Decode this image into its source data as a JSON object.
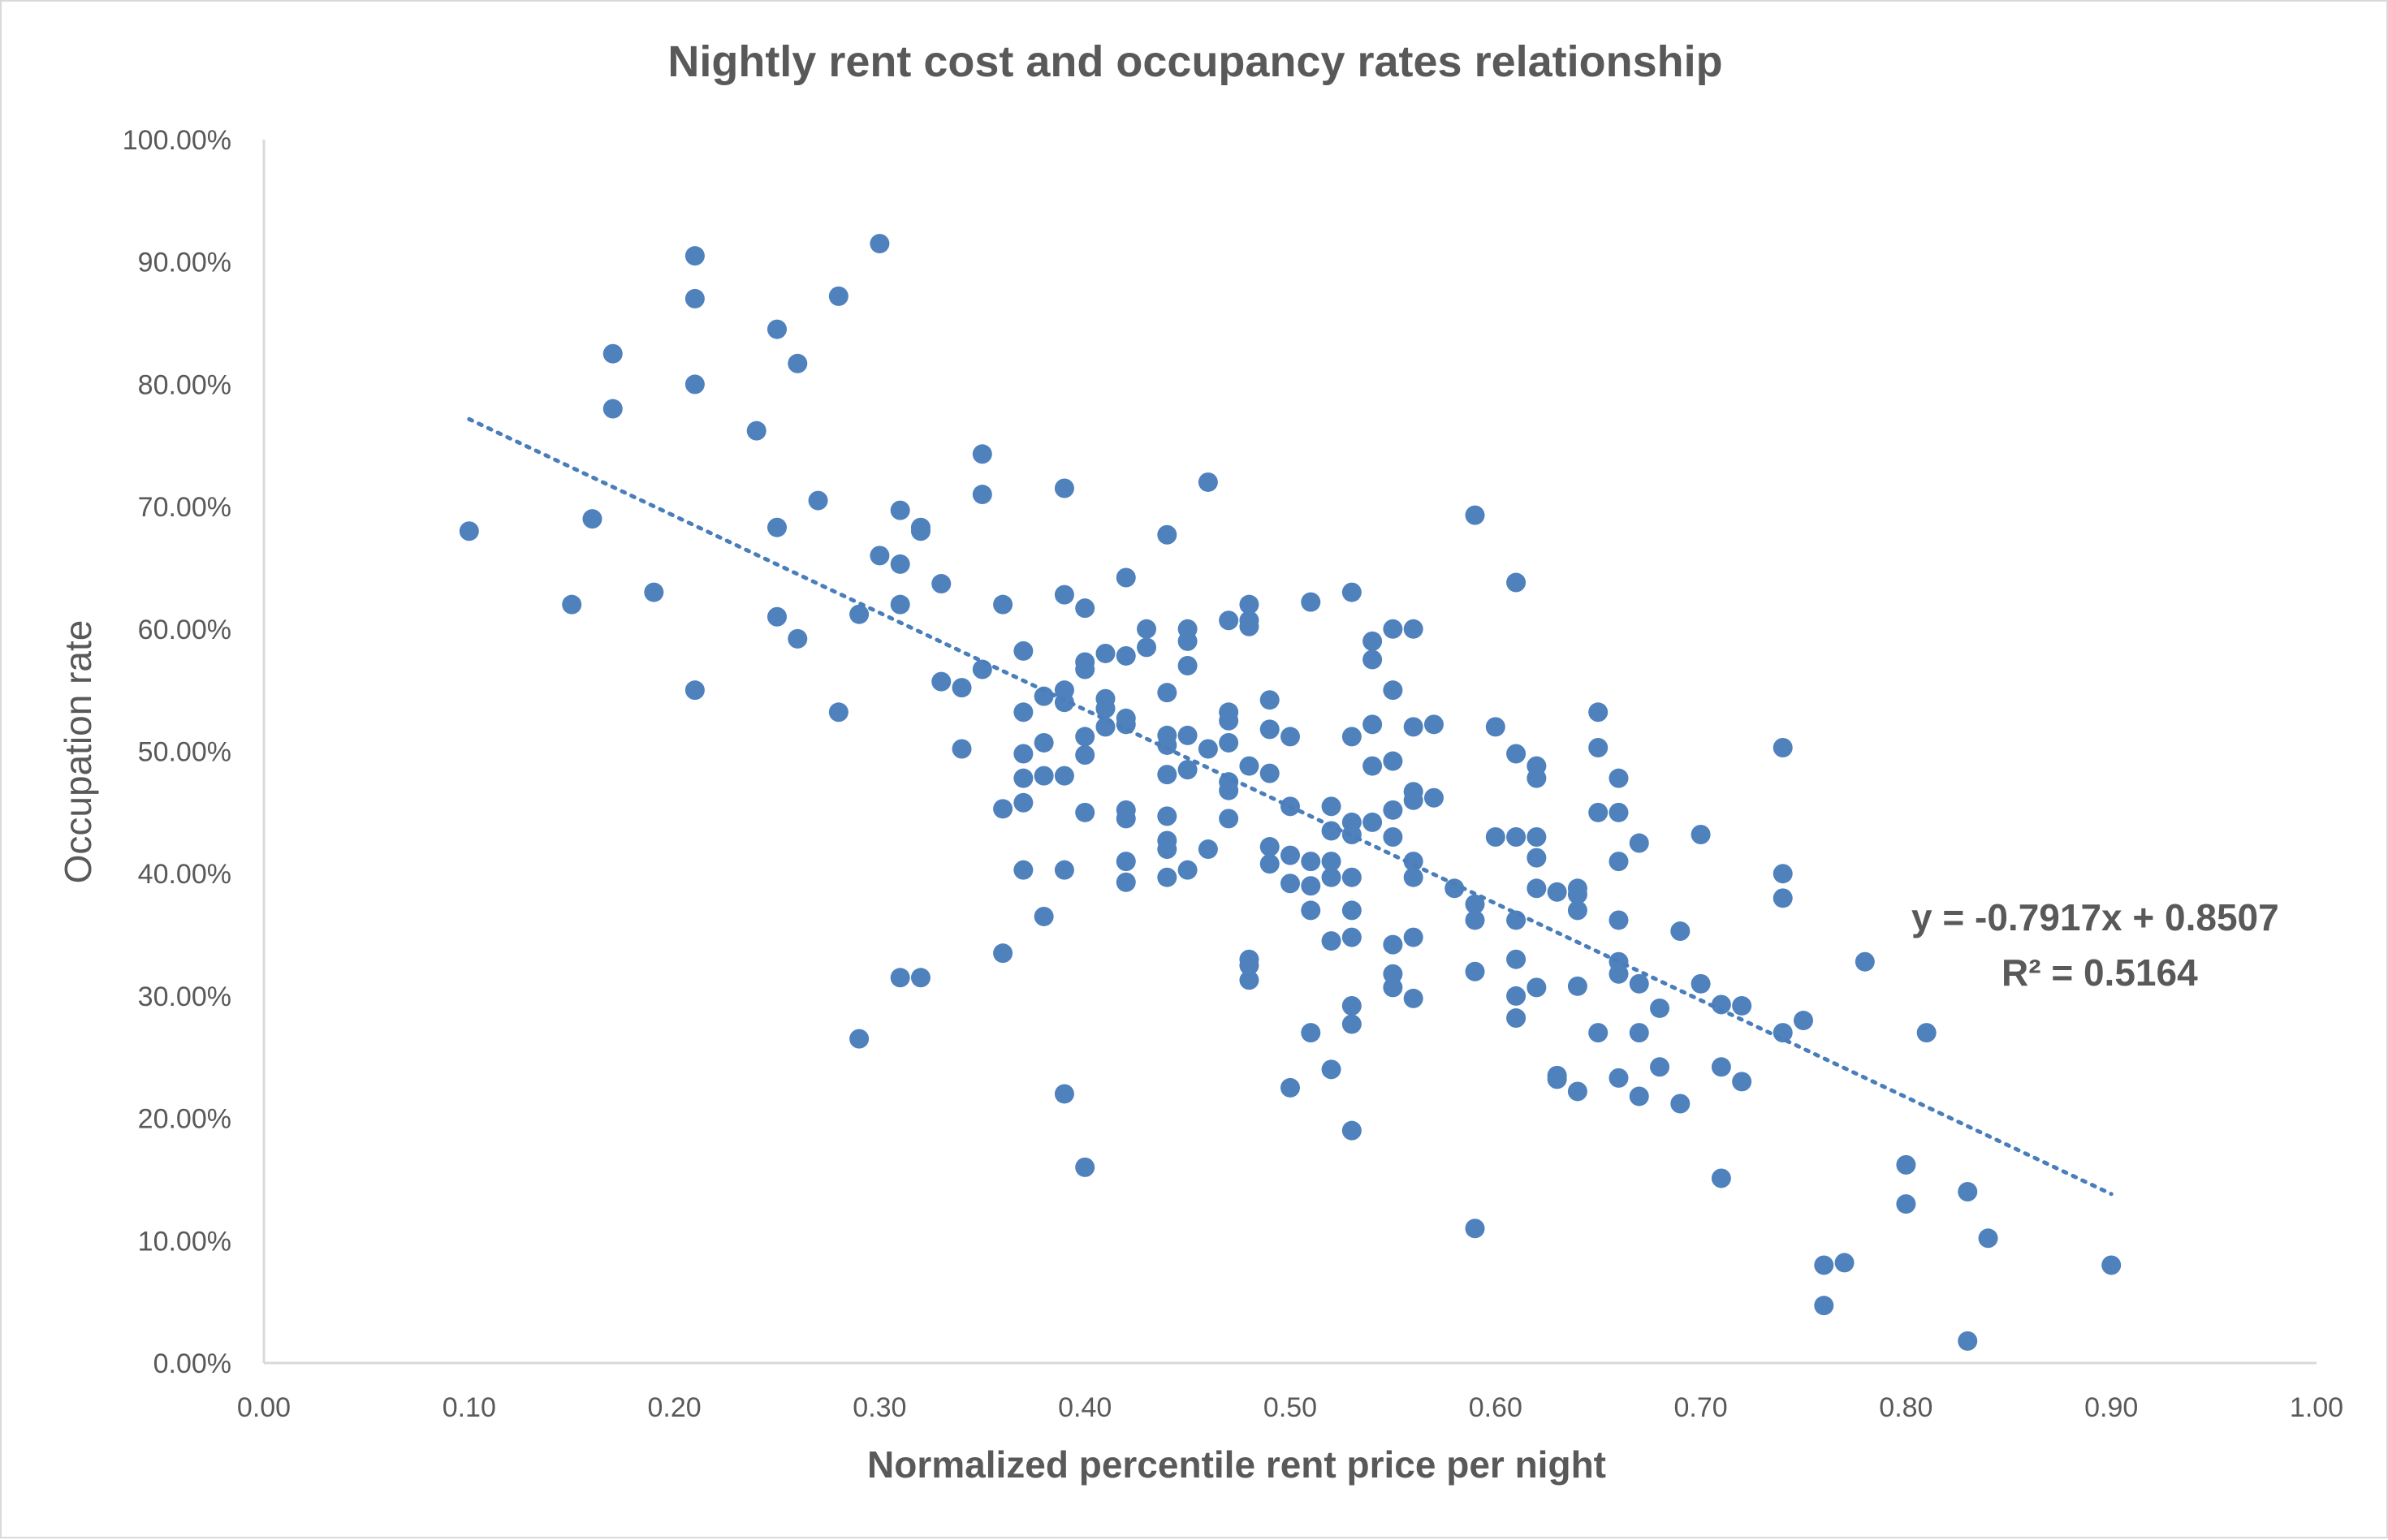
{
  "colors": {
    "point": "#4f81bd",
    "trendline": "#4a7ebb",
    "text": "#595959",
    "axis": "#d9d9d9"
  },
  "chart_data": {
    "type": "scatter",
    "title": "Nightly rent cost and occupancy rates relationship",
    "xlabel": "Normalized percentile rent  price per night",
    "ylabel": "Occupation rate",
    "xlim": [
      0,
      1
    ],
    "ylim": [
      0,
      1
    ],
    "x_ticks": [
      "0.00",
      "0.10",
      "0.20",
      "0.30",
      "0.40",
      "0.50",
      "0.60",
      "0.70",
      "0.80",
      "0.90",
      "1.00"
    ],
    "y_ticks": [
      "0.00%",
      "10.00%",
      "20.00%",
      "30.00%",
      "40.00%",
      "50.00%",
      "60.00%",
      "70.00%",
      "80.00%",
      "90.00%",
      "100.00%"
    ],
    "grid": false,
    "legend": "none",
    "trendline": {
      "type": "linear",
      "slope": -0.7917,
      "intercept": 0.8507,
      "x_range": [
        0.1,
        0.9
      ],
      "equation_label": "y = -0.7917x + 0.8507",
      "r2_label": "R² = 0.5164"
    },
    "series": [
      {
        "points": [
          [
            0.1,
            0.68
          ],
          [
            0.15,
            0.62
          ],
          [
            0.16,
            0.69
          ],
          [
            0.17,
            0.825
          ],
          [
            0.17,
            0.78
          ],
          [
            0.19,
            0.63
          ],
          [
            0.21,
            0.905
          ],
          [
            0.21,
            0.87
          ],
          [
            0.21,
            0.8
          ],
          [
            0.21,
            0.55
          ],
          [
            0.24,
            0.762
          ],
          [
            0.25,
            0.845
          ],
          [
            0.25,
            0.683
          ],
          [
            0.25,
            0.61
          ],
          [
            0.26,
            0.817
          ],
          [
            0.26,
            0.592
          ],
          [
            0.27,
            0.705
          ],
          [
            0.28,
            0.872
          ],
          [
            0.28,
            0.532
          ],
          [
            0.29,
            0.612
          ],
          [
            0.29,
            0.265
          ],
          [
            0.3,
            0.915
          ],
          [
            0.3,
            0.66
          ],
          [
            0.31,
            0.697
          ],
          [
            0.31,
            0.653
          ],
          [
            0.31,
            0.62
          ],
          [
            0.31,
            0.315
          ],
          [
            0.32,
            0.683
          ],
          [
            0.32,
            0.68
          ],
          [
            0.32,
            0.315
          ],
          [
            0.33,
            0.637
          ],
          [
            0.33,
            0.557
          ],
          [
            0.34,
            0.552
          ],
          [
            0.34,
            0.502
          ],
          [
            0.35,
            0.743
          ],
          [
            0.35,
            0.567
          ],
          [
            0.35,
            0.71
          ],
          [
            0.36,
            0.62
          ],
          [
            0.36,
            0.335
          ],
          [
            0.37,
            0.582
          ],
          [
            0.37,
            0.532
          ],
          [
            0.37,
            0.498
          ],
          [
            0.37,
            0.478
          ],
          [
            0.37,
            0.458
          ],
          [
            0.36,
            0.453
          ],
          [
            0.37,
            0.403
          ],
          [
            0.38,
            0.545
          ],
          [
            0.38,
            0.507
          ],
          [
            0.38,
            0.48
          ],
          [
            0.38,
            0.365
          ],
          [
            0.39,
            0.715
          ],
          [
            0.39,
            0.628
          ],
          [
            0.39,
            0.55
          ],
          [
            0.39,
            0.54
          ],
          [
            0.39,
            0.48
          ],
          [
            0.39,
            0.403
          ],
          [
            0.39,
            0.22
          ],
          [
            0.4,
            0.617
          ],
          [
            0.4,
            0.573
          ],
          [
            0.4,
            0.567
          ],
          [
            0.4,
            0.497
          ],
          [
            0.4,
            0.512
          ],
          [
            0.4,
            0.45
          ],
          [
            0.4,
            0.16
          ],
          [
            0.41,
            0.58
          ],
          [
            0.41,
            0.543
          ],
          [
            0.41,
            0.535
          ],
          [
            0.41,
            0.52
          ],
          [
            0.42,
            0.642
          ],
          [
            0.42,
            0.578
          ],
          [
            0.42,
            0.527
          ],
          [
            0.42,
            0.522
          ],
          [
            0.42,
            0.452
          ],
          [
            0.42,
            0.445
          ],
          [
            0.42,
            0.41
          ],
          [
            0.42,
            0.393
          ],
          [
            0.43,
            0.6
          ],
          [
            0.43,
            0.585
          ],
          [
            0.44,
            0.677
          ],
          [
            0.44,
            0.548
          ],
          [
            0.44,
            0.513
          ],
          [
            0.44,
            0.505
          ],
          [
            0.44,
            0.481
          ],
          [
            0.44,
            0.447
          ],
          [
            0.44,
            0.427
          ],
          [
            0.44,
            0.42
          ],
          [
            0.44,
            0.397
          ],
          [
            0.45,
            0.6
          ],
          [
            0.45,
            0.59
          ],
          [
            0.45,
            0.57
          ],
          [
            0.45,
            0.513
          ],
          [
            0.45,
            0.485
          ],
          [
            0.45,
            0.403
          ],
          [
            0.46,
            0.72
          ],
          [
            0.46,
            0.502
          ],
          [
            0.46,
            0.42
          ],
          [
            0.47,
            0.607
          ],
          [
            0.47,
            0.532
          ],
          [
            0.47,
            0.525
          ],
          [
            0.47,
            0.507
          ],
          [
            0.47,
            0.475
          ],
          [
            0.47,
            0.468
          ],
          [
            0.47,
            0.445
          ],
          [
            0.48,
            0.62
          ],
          [
            0.48,
            0.607
          ],
          [
            0.48,
            0.602
          ],
          [
            0.48,
            0.488
          ],
          [
            0.48,
            0.33
          ],
          [
            0.48,
            0.325
          ],
          [
            0.48,
            0.313
          ],
          [
            0.49,
            0.542
          ],
          [
            0.49,
            0.518
          ],
          [
            0.49,
            0.482
          ],
          [
            0.49,
            0.422
          ],
          [
            0.49,
            0.408
          ],
          [
            0.5,
            0.512
          ],
          [
            0.5,
            0.455
          ],
          [
            0.5,
            0.415
          ],
          [
            0.5,
            0.392
          ],
          [
            0.5,
            0.225
          ],
          [
            0.51,
            0.622
          ],
          [
            0.51,
            0.41
          ],
          [
            0.51,
            0.39
          ],
          [
            0.51,
            0.37
          ],
          [
            0.51,
            0.27
          ],
          [
            0.52,
            0.41
          ],
          [
            0.52,
            0.397
          ],
          [
            0.52,
            0.24
          ],
          [
            0.52,
            0.455
          ],
          [
            0.52,
            0.435
          ],
          [
            0.52,
            0.345
          ],
          [
            0.53,
            0.63
          ],
          [
            0.53,
            0.512
          ],
          [
            0.53,
            0.442
          ],
          [
            0.53,
            0.432
          ],
          [
            0.53,
            0.397
          ],
          [
            0.53,
            0.37
          ],
          [
            0.53,
            0.348
          ],
          [
            0.53,
            0.292
          ],
          [
            0.53,
            0.277
          ],
          [
            0.53,
            0.19
          ],
          [
            0.54,
            0.59
          ],
          [
            0.54,
            0.575
          ],
          [
            0.54,
            0.522
          ],
          [
            0.54,
            0.488
          ],
          [
            0.54,
            0.442
          ],
          [
            0.55,
            0.6
          ],
          [
            0.55,
            0.492
          ],
          [
            0.55,
            0.452
          ],
          [
            0.55,
            0.43
          ],
          [
            0.55,
            0.342
          ],
          [
            0.55,
            0.318
          ],
          [
            0.55,
            0.307
          ],
          [
            0.55,
            0.55
          ],
          [
            0.56,
            0.6
          ],
          [
            0.56,
            0.52
          ],
          [
            0.56,
            0.467
          ],
          [
            0.56,
            0.46
          ],
          [
            0.56,
            0.41
          ],
          [
            0.56,
            0.397
          ],
          [
            0.56,
            0.348
          ],
          [
            0.56,
            0.298
          ],
          [
            0.57,
            0.522
          ],
          [
            0.57,
            0.462
          ],
          [
            0.58,
            0.388
          ],
          [
            0.59,
            0.693
          ],
          [
            0.59,
            0.375
          ],
          [
            0.59,
            0.362
          ],
          [
            0.59,
            0.32
          ],
          [
            0.59,
            0.11
          ],
          [
            0.6,
            0.52
          ],
          [
            0.6,
            0.43
          ],
          [
            0.61,
            0.638
          ],
          [
            0.61,
            0.498
          ],
          [
            0.61,
            0.43
          ],
          [
            0.61,
            0.362
          ],
          [
            0.61,
            0.33
          ],
          [
            0.61,
            0.3
          ],
          [
            0.61,
            0.282
          ],
          [
            0.62,
            0.488
          ],
          [
            0.62,
            0.478
          ],
          [
            0.62,
            0.43
          ],
          [
            0.62,
            0.413
          ],
          [
            0.62,
            0.388
          ],
          [
            0.62,
            0.307
          ],
          [
            0.63,
            0.385
          ],
          [
            0.63,
            0.235
          ],
          [
            0.63,
            0.232
          ],
          [
            0.64,
            0.388
          ],
          [
            0.64,
            0.383
          ],
          [
            0.64,
            0.37
          ],
          [
            0.64,
            0.308
          ],
          [
            0.64,
            0.222
          ],
          [
            0.65,
            0.532
          ],
          [
            0.65,
            0.503
          ],
          [
            0.65,
            0.45
          ],
          [
            0.65,
            0.27
          ],
          [
            0.66,
            0.45
          ],
          [
            0.66,
            0.41
          ],
          [
            0.66,
            0.362
          ],
          [
            0.66,
            0.328
          ],
          [
            0.66,
            0.318
          ],
          [
            0.66,
            0.233
          ],
          [
            0.66,
            0.478
          ],
          [
            0.67,
            0.425
          ],
          [
            0.67,
            0.31
          ],
          [
            0.67,
            0.27
          ],
          [
            0.67,
            0.218
          ],
          [
            0.68,
            0.29
          ],
          [
            0.68,
            0.242
          ],
          [
            0.69,
            0.353
          ],
          [
            0.69,
            0.212
          ],
          [
            0.7,
            0.432
          ],
          [
            0.7,
            0.31
          ],
          [
            0.71,
            0.293
          ],
          [
            0.71,
            0.242
          ],
          [
            0.71,
            0.151
          ],
          [
            0.72,
            0.292
          ],
          [
            0.72,
            0.23
          ],
          [
            0.74,
            0.503
          ],
          [
            0.74,
            0.4
          ],
          [
            0.74,
            0.38
          ],
          [
            0.74,
            0.27
          ],
          [
            0.75,
            0.28
          ],
          [
            0.76,
            0.08
          ],
          [
            0.76,
            0.047
          ],
          [
            0.77,
            0.082
          ],
          [
            0.78,
            0.328
          ],
          [
            0.8,
            0.162
          ],
          [
            0.8,
            0.13
          ],
          [
            0.81,
            0.27
          ],
          [
            0.83,
            0.14
          ],
          [
            0.83,
            0.018
          ],
          [
            0.84,
            0.102
          ],
          [
            0.9,
            0.08
          ]
        ]
      }
    ]
  }
}
